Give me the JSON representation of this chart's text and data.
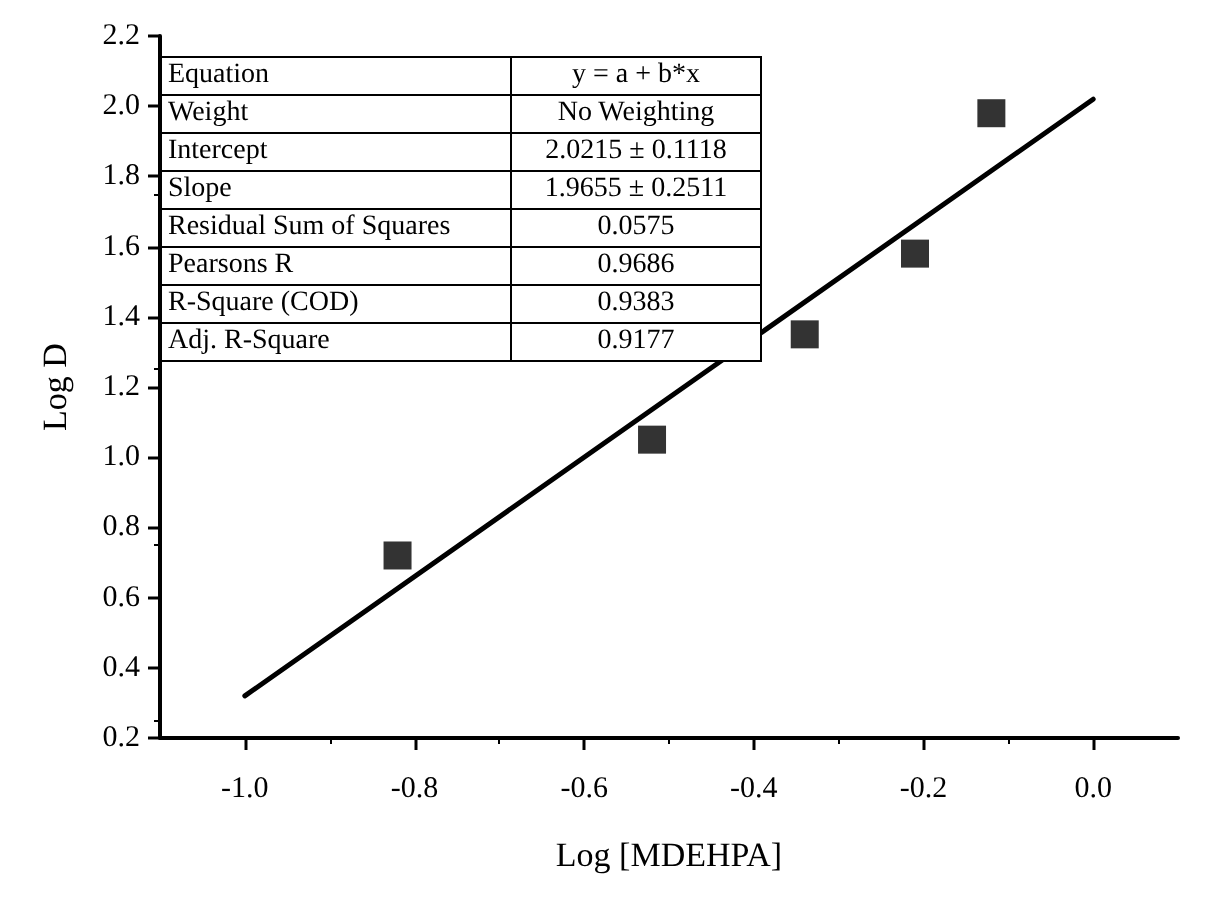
{
  "chart_data": {
    "type": "scatter",
    "xlabel": "Log [MDEHPA]",
    "ylabel": "Log D",
    "xlim": [
      -1.1,
      0.1
    ],
    "ylim": [
      0.2,
      2.2
    ],
    "xticks": [
      {
        "value": -1.0,
        "label": "-1.0"
      },
      -0.8,
      -0.6,
      -0.4,
      -0.2,
      {
        "value": 0.0,
        "label": "0.0"
      }
    ],
    "yticks": [
      0.2,
      0.4,
      0.6,
      0.8,
      {
        "value": 1.0,
        "label": "1.0"
      },
      1.2,
      1.4,
      1.6,
      1.8,
      {
        "value": 2.0,
        "label": "2.0"
      },
      2.2
    ],
    "grid": false,
    "series": [
      {
        "marker": "square",
        "color": "#000000",
        "x": [
          -0.82,
          -0.52,
          -0.34,
          -0.21,
          -0.12
        ],
        "values": [
          0.72,
          1.05,
          1.35,
          1.58,
          1.98
        ]
      },
      {
        "type": "line",
        "marker": "none",
        "line_style": "solid",
        "color": "#000000",
        "x": [
          -1.0,
          0.0
        ],
        "values": [
          0.32,
          2.02
        ]
      }
    ],
    "annotations": [
      "Equation",
      "y = a + b*x",
      "Weight",
      "No Weighting",
      "Intercept",
      "2.0215 ± 0.1118",
      "Slope",
      "1.9655 ± 0.2511",
      "Residual Sum of Squares",
      "0.0575",
      "Pearsons R",
      "0.9686",
      "R-Square (COD)",
      "0.9383",
      "Adj. R-Square",
      "0.9177"
    ]
  }
}
